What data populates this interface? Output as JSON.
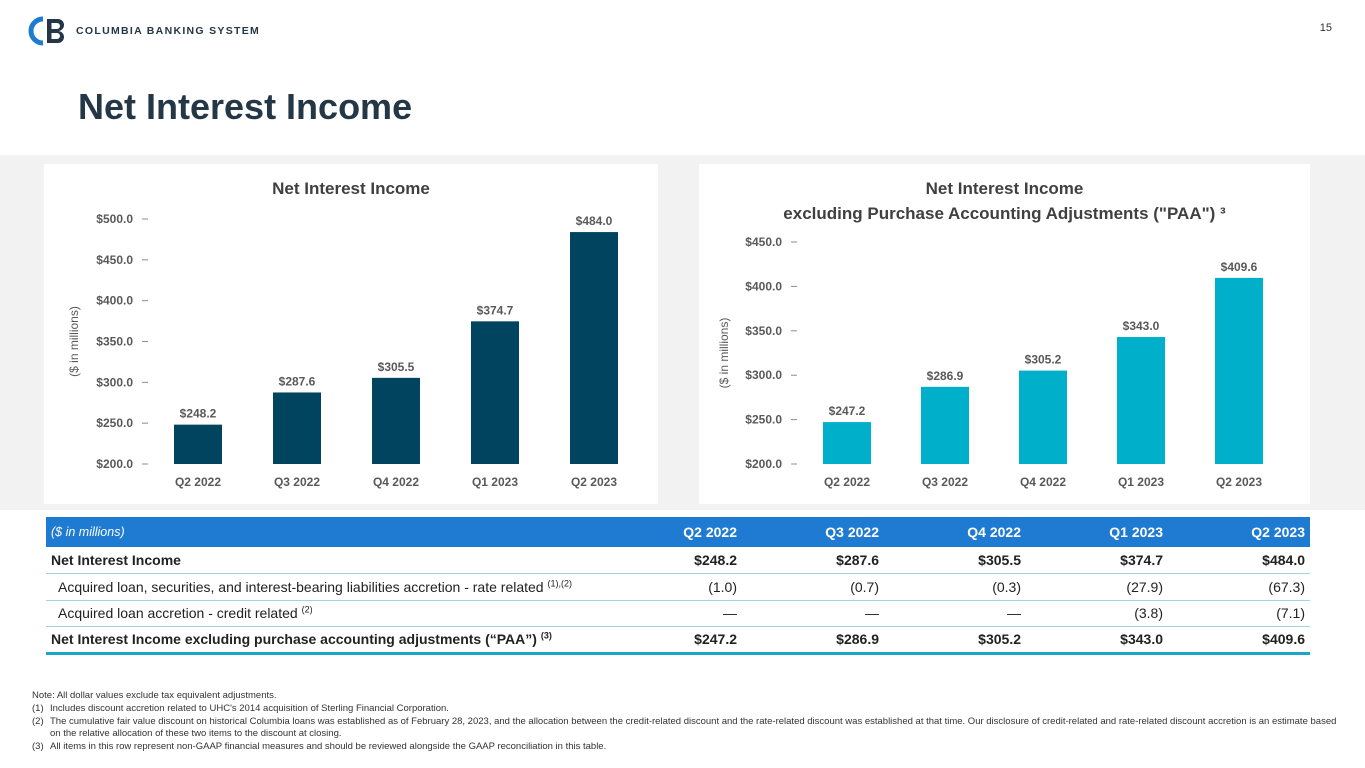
{
  "header": {
    "company": "COLUMBIA BANKING SYSTEM",
    "page_number": "15",
    "title": "Net Interest Income",
    "colors": {
      "navy": "#243746",
      "brand_blue": "#1f7bd1"
    }
  },
  "chart_data": [
    {
      "type": "bar",
      "title": "Net Interest Income",
      "ylabel": "($ in millions)",
      "categories": [
        "Q2 2022",
        "Q3 2022",
        "Q4 2022",
        "Q1 2023",
        "Q2 2023"
      ],
      "values": [
        248.2,
        287.6,
        305.5,
        374.7,
        484.0
      ],
      "data_labels": [
        "$248.2",
        "$287.6",
        "$305.5",
        "$374.7",
        "$484.0"
      ],
      "yticks": [
        200,
        250,
        300,
        350,
        400,
        450,
        500
      ],
      "ytick_labels": [
        "$200.0",
        "$250.0",
        "$300.0",
        "$350.0",
        "$400.0",
        "$450.0",
        "$500.0"
      ],
      "ylim": [
        200,
        500
      ],
      "color": "#00445f"
    },
    {
      "type": "bar",
      "title": "Net Interest Income",
      "subtitle": "excluding Purchase Accounting Adjustments (\"PAA\") ³",
      "ylabel": "($ in millions)",
      "categories": [
        "Q2 2022",
        "Q3 2022",
        "Q4 2022",
        "Q1 2023",
        "Q2 2023"
      ],
      "values": [
        247.2,
        286.9,
        305.2,
        343.0,
        409.6
      ],
      "data_labels": [
        "$247.2",
        "$286.9",
        "$305.2",
        "$343.0",
        "$409.6"
      ],
      "yticks": [
        200,
        250,
        300,
        350,
        400,
        450
      ],
      "ytick_labels": [
        "$200.0",
        "$250.0",
        "$300.0",
        "$350.0",
        "$400.0",
        "$450.0"
      ],
      "ylim": [
        200,
        450
      ],
      "color": "#00afca"
    }
  ],
  "table": {
    "header_label": "($ in millions)",
    "columns": [
      "Q2 2022",
      "Q3 2022",
      "Q4 2022",
      "Q1 2023",
      "Q2 2023"
    ],
    "rows": [
      {
        "label": "Net Interest Income",
        "sup": "",
        "values": [
          "$248.2",
          "$287.6",
          "$305.5",
          "$374.7",
          "$484.0"
        ]
      },
      {
        "label": "Acquired loan, securities, and interest-bearing liabilities accretion - rate related",
        "sup": "(1),(2)",
        "values": [
          "(1.0)",
          "(0.7)",
          "(0.3)",
          "(27.9)",
          "(67.3)"
        ]
      },
      {
        "label": "Acquired loan accretion - credit related",
        "sup": "(2)",
        "values": [
          "—",
          "—",
          "—",
          "(3.8)",
          "(7.1)"
        ]
      },
      {
        "label": "Net Interest Income excluding purchase accounting adjustments (“PAA”)",
        "sup": "(3)",
        "values": [
          "$247.2",
          "$286.9",
          "$305.2",
          "$343.0",
          "$409.6"
        ]
      }
    ]
  },
  "notes": {
    "intro": "Note: All dollar values exclude tax equivalent adjustments.",
    "items": [
      {
        "num": "(1)",
        "text": "Includes discount accretion related to UHC's 2014 acquisition of Sterling Financial Corporation."
      },
      {
        "num": "(2)",
        "text": "The cumulative fair value discount on historical Columbia loans was established as of February 28, 2023, and the allocation between the credit-related discount and the rate-related discount was established at that time. Our disclosure of credit-related and rate-related discount accretion is an estimate based on the relative allocation of these two items to the discount at closing."
      },
      {
        "num": "(3)",
        "text": "All items in this row represent non-GAAP financial measures and should be reviewed alongside the GAAP reconciliation in this table."
      }
    ]
  }
}
